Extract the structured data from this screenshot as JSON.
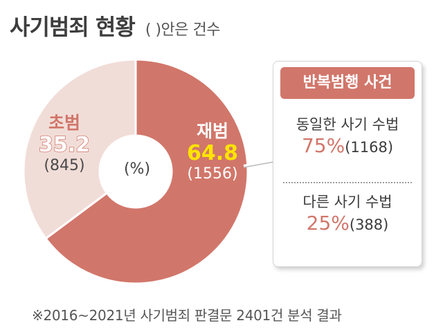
{
  "title": "사기범죄 현황",
  "unit_note": "( )안은 건수",
  "center_unit": "(%)",
  "chart_data": {
    "type": "pie",
    "donut": true,
    "slices": [
      {
        "category": "재범",
        "percent_label": "64.8",
        "count_label": "(1556)",
        "value": 64.8,
        "count": 1556,
        "color": "#d1766a"
      },
      {
        "category": "초범",
        "percent_label": "35.2",
        "count_label": "(845)",
        "value": 35.2,
        "count": 845,
        "color": "#f1ddd8"
      }
    ]
  },
  "panel": {
    "heading": "반복범행 사건",
    "items": [
      {
        "label": "동일한 사기 수법",
        "percent": "75%",
        "count": "(1168)"
      },
      {
        "label": "다른 사기 수법",
        "percent": "25%",
        "count": "(388)"
      }
    ]
  },
  "footnote": "※2016~2021년 사기범죄 판결문 2401건 분석 결과"
}
